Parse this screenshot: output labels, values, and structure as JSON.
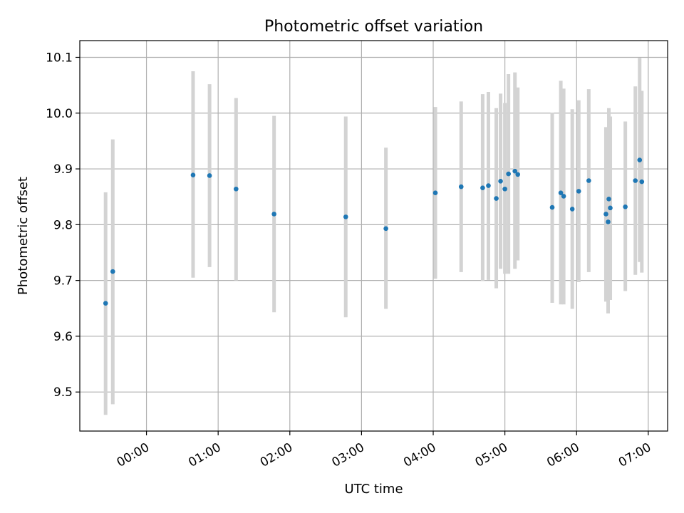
{
  "chart_data": {
    "type": "scatter",
    "title": "Photometric offset variation",
    "xlabel": "UTC time",
    "ylabel": "Photometric offset",
    "x_unit": "hours",
    "xlim": [
      -0.93,
      7.27
    ],
    "ylim": [
      9.43,
      10.13
    ],
    "x_ticks": [
      {
        "value": 0,
        "label": "00:00"
      },
      {
        "value": 1,
        "label": "01:00"
      },
      {
        "value": 2,
        "label": "02:00"
      },
      {
        "value": 3,
        "label": "03:00"
      },
      {
        "value": 4,
        "label": "04:00"
      },
      {
        "value": 5,
        "label": "05:00"
      },
      {
        "value": 6,
        "label": "06:00"
      },
      {
        "value": 7,
        "label": "07:00"
      }
    ],
    "y_ticks": [
      {
        "value": 9.5,
        "label": "9.5"
      },
      {
        "value": 9.6,
        "label": "9.6"
      },
      {
        "value": 9.7,
        "label": "9.7"
      },
      {
        "value": 9.8,
        "label": "9.8"
      },
      {
        "value": 9.9,
        "label": "9.9"
      },
      {
        "value": 10.0,
        "label": "10.0"
      },
      {
        "value": 10.1,
        "label": "10.1"
      }
    ],
    "grid": true,
    "colors": {
      "point": "#1f77b4",
      "errorbar": "#d3d3d3",
      "grid": "#b0b0b0"
    },
    "points": [
      {
        "x": -0.57,
        "y": 9.659,
        "lo": 9.459,
        "hi": 9.858
      },
      {
        "x": -0.47,
        "y": 9.716,
        "lo": 9.478,
        "hi": 9.953
      },
      {
        "x": 0.65,
        "y": 9.889,
        "lo": 9.705,
        "hi": 10.075
      },
      {
        "x": 0.88,
        "y": 9.888,
        "lo": 9.724,
        "hi": 10.052
      },
      {
        "x": 1.25,
        "y": 9.864,
        "lo": 9.7,
        "hi": 10.027
      },
      {
        "x": 1.78,
        "y": 9.819,
        "lo": 9.643,
        "hi": 9.995
      },
      {
        "x": 2.78,
        "y": 9.814,
        "lo": 9.634,
        "hi": 9.994
      },
      {
        "x": 3.34,
        "y": 9.793,
        "lo": 9.649,
        "hi": 9.938
      },
      {
        "x": 4.03,
        "y": 9.857,
        "lo": 9.703,
        "hi": 10.011
      },
      {
        "x": 4.39,
        "y": 9.868,
        "lo": 9.715,
        "hi": 10.021
      },
      {
        "x": 4.69,
        "y": 9.866,
        "lo": 9.699,
        "hi": 10.034
      },
      {
        "x": 4.77,
        "y": 9.87,
        "lo": 9.701,
        "hi": 10.038
      },
      {
        "x": 4.88,
        "y": 9.847,
        "lo": 9.686,
        "hi": 10.009
      },
      {
        "x": 4.94,
        "y": 9.878,
        "lo": 9.721,
        "hi": 10.035
      },
      {
        "x": 5.0,
        "y": 9.864,
        "lo": 9.712,
        "hi": 10.018
      },
      {
        "x": 5.05,
        "y": 9.891,
        "lo": 9.712,
        "hi": 10.07
      },
      {
        "x": 5.14,
        "y": 9.896,
        "lo": 9.721,
        "hi": 10.073
      },
      {
        "x": 5.18,
        "y": 9.89,
        "lo": 9.736,
        "hi": 10.046
      },
      {
        "x": 5.66,
        "y": 9.831,
        "lo": 9.66,
        "hi": 10.001
      },
      {
        "x": 5.78,
        "y": 9.857,
        "lo": 9.657,
        "hi": 10.058
      },
      {
        "x": 5.82,
        "y": 9.851,
        "lo": 9.657,
        "hi": 10.044
      },
      {
        "x": 5.94,
        "y": 9.828,
        "lo": 9.649,
        "hi": 10.007
      },
      {
        "x": 6.03,
        "y": 9.86,
        "lo": 9.697,
        "hi": 10.023
      },
      {
        "x": 6.17,
        "y": 9.879,
        "lo": 9.715,
        "hi": 10.043
      },
      {
        "x": 6.41,
        "y": 9.819,
        "lo": 9.662,
        "hi": 9.975
      },
      {
        "x": 6.44,
        "y": 9.805,
        "lo": 9.641,
        "hi": 9.969
      },
      {
        "x": 6.45,
        "y": 9.846,
        "lo": 9.683,
        "hi": 10.009
      },
      {
        "x": 6.47,
        "y": 9.83,
        "lo": 9.665,
        "hi": 9.994
      },
      {
        "x": 6.68,
        "y": 9.832,
        "lo": 9.681,
        "hi": 9.985
      },
      {
        "x": 6.82,
        "y": 9.879,
        "lo": 9.71,
        "hi": 10.048
      },
      {
        "x": 6.88,
        "y": 9.916,
        "lo": 9.733,
        "hi": 10.099
      },
      {
        "x": 6.91,
        "y": 9.877,
        "lo": 9.714,
        "hi": 10.04
      }
    ]
  }
}
